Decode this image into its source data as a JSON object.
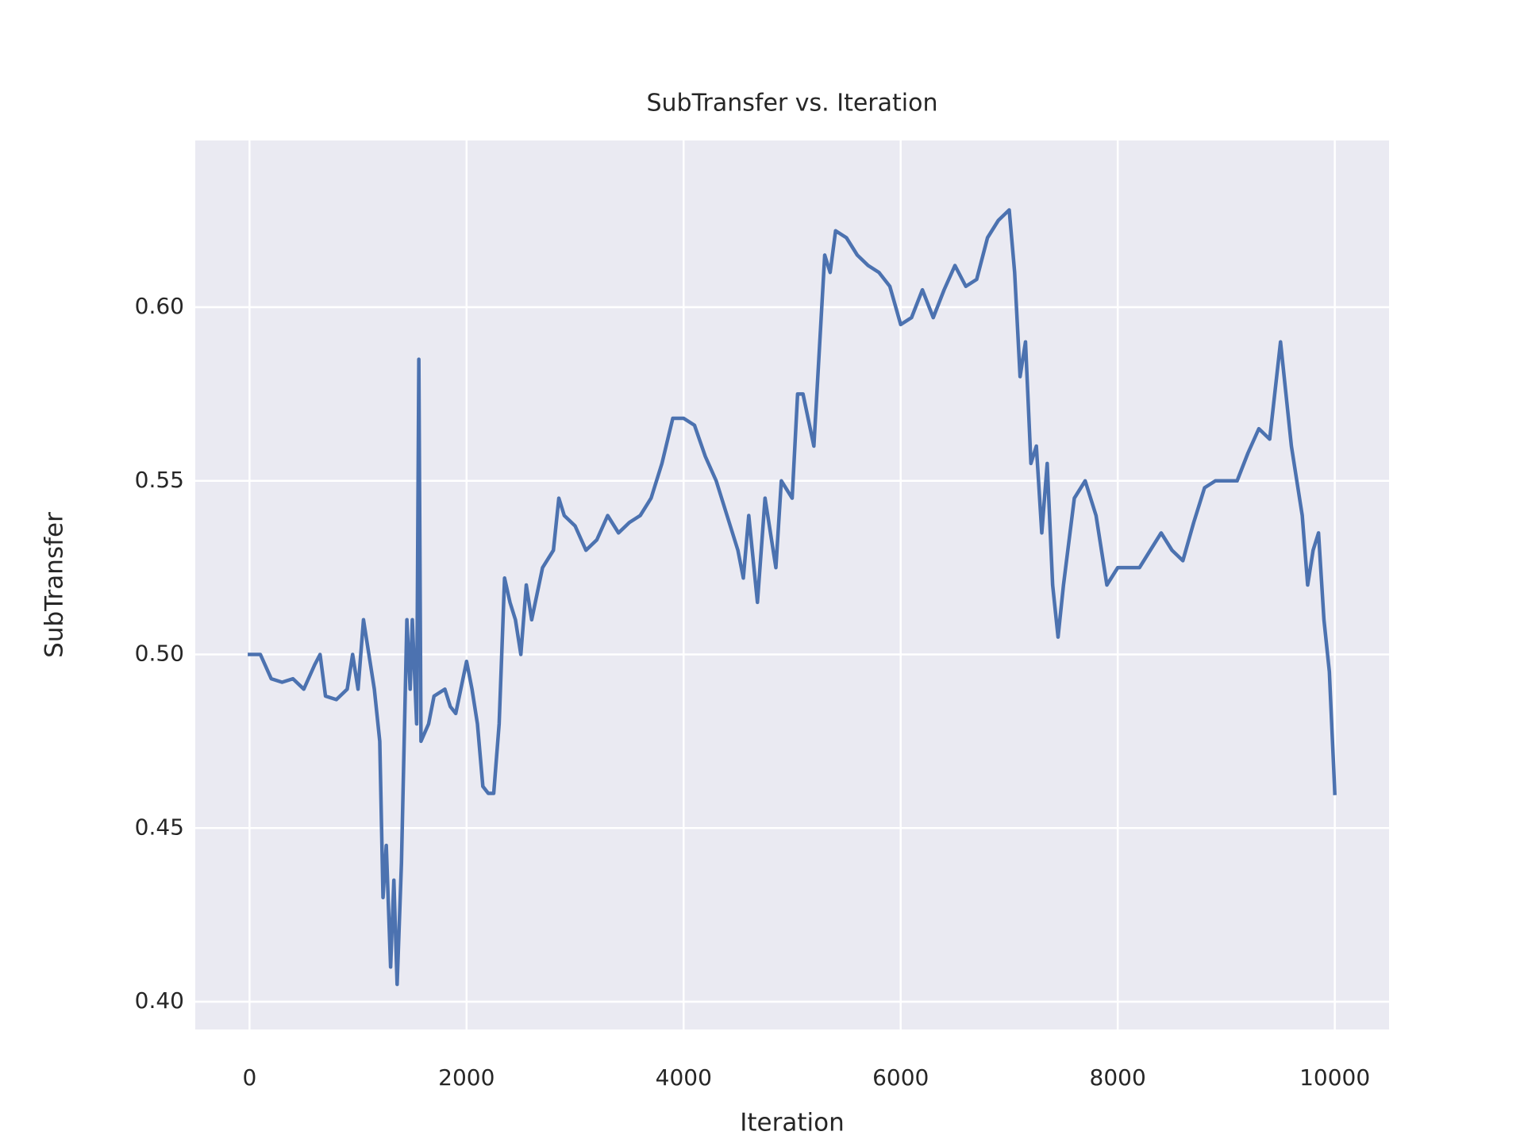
{
  "chart_data": {
    "type": "line",
    "title": "SubTransfer vs. Iteration",
    "x_label": "Iteration",
    "y_label": "SubTransfer",
    "x": [
      0,
      100,
      200,
      300,
      400,
      500,
      600,
      650,
      700,
      800,
      900,
      950,
      1000,
      1050,
      1100,
      1150,
      1200,
      1230,
      1260,
      1300,
      1330,
      1360,
      1400,
      1450,
      1480,
      1500,
      1540,
      1560,
      1580,
      1650,
      1700,
      1800,
      1850,
      1900,
      2000,
      2050,
      2100,
      2150,
      2200,
      2250,
      2300,
      2350,
      2400,
      2450,
      2500,
      2550,
      2600,
      2700,
      2800,
      2850,
      2900,
      3000,
      3100,
      3200,
      3300,
      3400,
      3500,
      3600,
      3700,
      3800,
      3900,
      4000,
      4100,
      4200,
      4300,
      4400,
      4500,
      4550,
      4600,
      4680,
      4750,
      4850,
      4900,
      5000,
      5050,
      5100,
      5200,
      5300,
      5350,
      5400,
      5500,
      5600,
      5700,
      5800,
      5900,
      6000,
      6100,
      6200,
      6300,
      6400,
      6500,
      6600,
      6700,
      6800,
      6900,
      7000,
      7050,
      7100,
      7150,
      7200,
      7250,
      7300,
      7350,
      7400,
      7450,
      7500,
      7600,
      7700,
      7800,
      7850,
      7900,
      8000,
      8100,
      8200,
      8300,
      8400,
      8500,
      8600,
      8700,
      8800,
      8900,
      9000,
      9100,
      9200,
      9300,
      9400,
      9500,
      9550,
      9600,
      9700,
      9750,
      9800,
      9850,
      9900,
      9950,
      10000
    ],
    "values": [
      0.5,
      0.5,
      0.493,
      0.492,
      0.493,
      0.49,
      0.497,
      0.5,
      0.488,
      0.487,
      0.49,
      0.5,
      0.49,
      0.51,
      0.5,
      0.49,
      0.475,
      0.43,
      0.445,
      0.41,
      0.435,
      0.405,
      0.44,
      0.51,
      0.49,
      0.51,
      0.48,
      0.585,
      0.475,
      0.48,
      0.488,
      0.49,
      0.485,
      0.483,
      0.498,
      0.49,
      0.48,
      0.462,
      0.46,
      0.46,
      0.48,
      0.522,
      0.515,
      0.51,
      0.5,
      0.52,
      0.51,
      0.525,
      0.53,
      0.545,
      0.54,
      0.537,
      0.53,
      0.533,
      0.54,
      0.535,
      0.538,
      0.54,
      0.545,
      0.555,
      0.568,
      0.568,
      0.566,
      0.557,
      0.55,
      0.54,
      0.53,
      0.522,
      0.54,
      0.515,
      0.545,
      0.525,
      0.55,
      0.545,
      0.575,
      0.575,
      0.56,
      0.615,
      0.61,
      0.622,
      0.62,
      0.615,
      0.612,
      0.61,
      0.606,
      0.595,
      0.597,
      0.605,
      0.597,
      0.605,
      0.612,
      0.606,
      0.608,
      0.62,
      0.625,
      0.628,
      0.61,
      0.58,
      0.59,
      0.555,
      0.56,
      0.535,
      0.555,
      0.52,
      0.505,
      0.52,
      0.545,
      0.55,
      0.54,
      0.53,
      0.52,
      0.525,
      0.525,
      0.525,
      0.53,
      0.535,
      0.53,
      0.527,
      0.538,
      0.548,
      0.55,
      0.55,
      0.55,
      0.558,
      0.565,
      0.562,
      0.59,
      0.575,
      0.56,
      0.54,
      0.52,
      0.53,
      0.535,
      0.51,
      0.495,
      0.46
    ],
    "color": "#4c72b0",
    "xlim": [
      -500,
      10500
    ],
    "xticks": [
      0,
      2000,
      4000,
      6000,
      8000,
      10000
    ],
    "ylim": [
      0.392,
      0.648
    ],
    "yticks": [
      {
        "value": 0.4,
        "label": "0.40"
      },
      {
        "value": 0.45,
        "label": "0.45"
      },
      {
        "value": 0.5,
        "label": "0.50"
      },
      {
        "value": 0.55,
        "label": "0.55"
      },
      {
        "value": 0.6,
        "label": "0.60"
      }
    ],
    "grid": true
  }
}
